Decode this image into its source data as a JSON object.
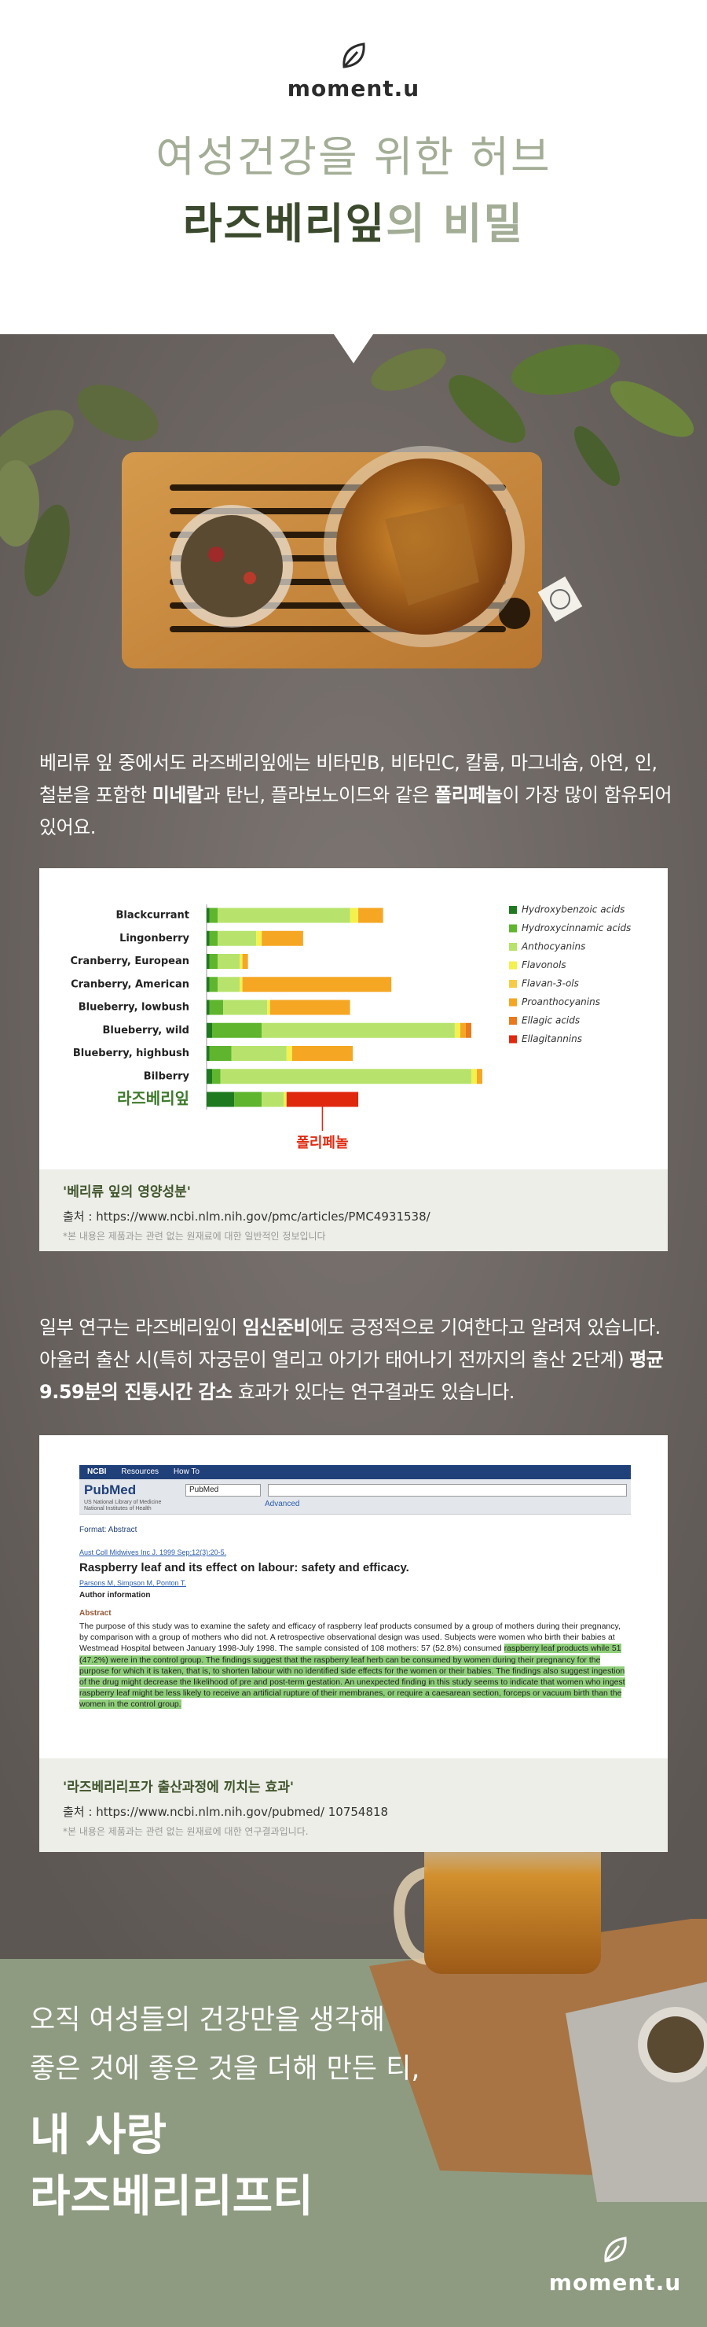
{
  "header": {
    "logo": "moment.u",
    "title_line1": "여성건강을 위한 허브",
    "title_line2": [
      {
        "text": "라즈베리잎",
        "color": "#3b4a2c"
      },
      {
        "text": "의 비밀",
        "color": "#a3ad96"
      }
    ]
  },
  "intro": {
    "segments": [
      {
        "text": "베리류 잎 중에서도 라즈베리잎에는 비타민B, 비타민C, 칼륨, 마그네슘, 아연, 인, 철분을 포함한 ",
        "bold": false
      },
      {
        "text": "미네랄",
        "bold": true
      },
      {
        "text": "과 탄닌, 플라보노이드와 같은 ",
        "bold": false
      },
      {
        "text": "폴리페놀",
        "bold": true
      },
      {
        "text": "이 가장 많이 함유되어 있어요.",
        "bold": false
      }
    ]
  },
  "chart_data": {
    "type": "bar",
    "orientation": "horizontal",
    "stacked": true,
    "categories": [
      "Blackcurrant",
      "Lingonberry",
      "Cranberry, European",
      "Cranberry, American",
      "Blueberry, lowbush",
      "Blueberry, wild",
      "Blueberry, highbush",
      "Bilberry",
      "라즈베리잎"
    ],
    "xlim": [
      0,
      100
    ],
    "series": [
      {
        "name": "Hydroxybenzoic acids",
        "color": "#1f7a1f",
        "values": [
          1,
          1,
          1,
          1,
          1,
          2,
          1,
          2,
          10
        ]
      },
      {
        "name": "Hydroxycinnamic acids",
        "color": "#5fb52e",
        "values": [
          3,
          3,
          3,
          3,
          5,
          18,
          8,
          3,
          10
        ]
      },
      {
        "name": "Anthocyanins",
        "color": "#b7e36c",
        "values": [
          48,
          14,
          8,
          8,
          16,
          70,
          20,
          91,
          8
        ]
      },
      {
        "name": "Flavonols",
        "color": "#f4f04e",
        "values": [
          3,
          2,
          1,
          1,
          1,
          2,
          2,
          2,
          1
        ]
      },
      {
        "name": "Flavan-3-ols",
        "color": "#f6cc47",
        "values": [
          0,
          0,
          0,
          0,
          0,
          0,
          0,
          0,
          0
        ]
      },
      {
        "name": "Proanthocyanins",
        "color": "#f5a623",
        "values": [
          9,
          15,
          2,
          54,
          29,
          2,
          22,
          2,
          0
        ]
      },
      {
        "name": "Ellagic acids",
        "color": "#e8791d",
        "values": [
          0,
          0,
          0,
          0,
          0,
          2,
          0,
          0,
          0
        ]
      },
      {
        "name": "Ellagitannins",
        "color": "#e0280f",
        "values": [
          0,
          0,
          0,
          0,
          0,
          0,
          0,
          0,
          26
        ]
      }
    ],
    "annotation": {
      "text": "폴리페놀",
      "color": "#e0280f"
    }
  },
  "chart_caption": {
    "title": "'베리류 잎의 영양성분'",
    "source": "출처 : https://www.ncbi.nlm.nih.gov/pmc/articles/PMC4931538/",
    "note": "*본 내용은 제품과는 관련 없는 원재료에 대한 일반적인 정보입니다"
  },
  "study_intro": {
    "segments": [
      {
        "text": "일부 연구는 라즈베리잎이 ",
        "bold": false
      },
      {
        "text": "임신준비",
        "bold": true
      },
      {
        "text": "에도 긍정적으로 기여한다고 알려져 있습니다. 아울러 출산 시(특히 자궁문이 열리고 아기가 태어나기 전까지의 출산 2단계) ",
        "bold": false
      },
      {
        "text": "평균 9.59분의 진통시간 감소",
        "bold": true
      },
      {
        "text": " 효과가 있다는 연구결과도 있습니다.",
        "bold": false
      }
    ]
  },
  "study": {
    "nav": [
      "NCBI",
      "Resources",
      "How To"
    ],
    "brand": "PubMed",
    "brand_sub": "US National Library of Medicine National Institutes of Health",
    "search_select": "PubMed",
    "advanced": "Advanced",
    "format": "Format: Abstract",
    "citation": "Aust Coll Midwives Inc J. 1999 Sep;12(3):20-5.",
    "title": "Raspberry leaf and its effect on labour: safety and efficacy.",
    "authors": "Parsons M, Simpson M, Ponton T.",
    "author_info": "Author information",
    "abstract_heading": "Abstract",
    "abstract_plain": "The purpose of this study was to examine the safety and efficacy of raspberry leaf products consumed by a group of mothers during their pregnancy, by comparison with a group of mothers who did not. A retrospective observational design was used. Subjects were women who birth their babies at Westmead Hospital between January 1998-July 1998. The sample consisted of 108 mothers: 57 (52.8%) consumed ",
    "abstract_highlight": "raspberry leaf products while 51 (47.2%) were in the control group. The findings suggest that the raspberry leaf herb can be consumed by women during their pregnancy for the purpose for which it is taken, that is, to shorten labour with no identified side effects for the women or their babies. The findings also suggest ingestion of the drug might decrease the likelihood of pre and post-term gestation. An unexpected finding in this study seems to indicate that women who ingest raspberry leaf might be less likely to receive an artificial rupture of their membranes, or require a caesarean section, forceps or vacuum birth than the women in the control group."
  },
  "study_caption": {
    "title": "'라즈베리리프가 출산과정에 끼치는 효과'",
    "source": "출처 : https://www.ncbi.nlm.nih.gov/pubmed/ 10754818",
    "note": "*본 내용은 제품과는 관련 없는 원재료에 대한 연구결과입니다."
  },
  "closing": {
    "line1": "오직 여성들의 건강만을 생각해",
    "line2": "좋은 것에 좋은 것을 더해  만든 티,",
    "line3": "내 사랑",
    "line4": "라즈베리리프티",
    "logo": "moment.u"
  }
}
